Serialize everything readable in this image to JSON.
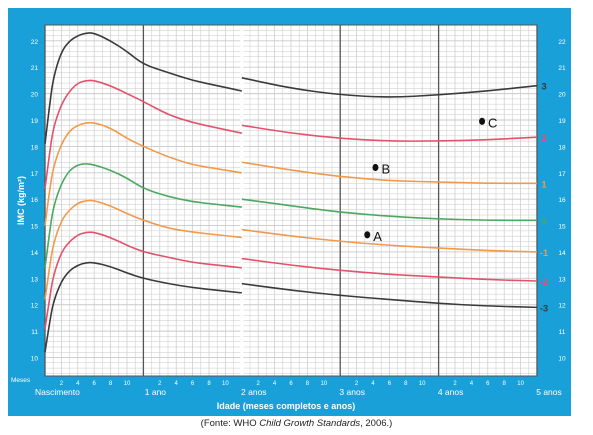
{
  "caption": {
    "prefix": "(Fonte: WHO ",
    "italic": "Child Growth Standards",
    "suffix": ", 2006.)"
  },
  "colors": {
    "background": "#1aa0d8",
    "plot": "#ffffff",
    "grid_minor": "#c9c9c9",
    "grid_major": "#555555",
    "z3": "#3a3a3a",
    "z2": "#e3526c",
    "z1": "#f2994a",
    "z0": "#4aa860"
  },
  "chart_data": {
    "type": "line",
    "ylabel": "IMC (kg/m²)",
    "xlabel": "Idade (meses completos e anos)",
    "x_unit_label": "Meses",
    "xlim": [
      0,
      60
    ],
    "ylim": [
      9.3,
      22.6
    ],
    "y_ticks": [
      10,
      11,
      12,
      13,
      14,
      15,
      16,
      17,
      18,
      19,
      20,
      21,
      22
    ],
    "x_year_labels": [
      {
        "x": 0,
        "label": "Nascimento"
      },
      {
        "x": 12,
        "label": "1 ano"
      },
      {
        "x": 24,
        "label": "2 anos"
      },
      {
        "x": 36,
        "label": "3 anos"
      },
      {
        "x": 48,
        "label": "4 anos"
      },
      {
        "x": 60,
        "label": "5 anos"
      }
    ],
    "x_month_labels": [
      "2",
      "4",
      "6",
      "8",
      "10"
    ],
    "break_at": 24,
    "series": [
      {
        "name": "3",
        "color_key": "z3",
        "x": [
          0,
          0.5,
          1,
          2,
          3,
          4,
          5,
          6,
          8,
          10,
          12,
          15,
          18,
          21,
          24,
          24,
          30,
          36,
          42,
          48,
          54,
          60
        ],
        "y": [
          18.1,
          19.4,
          20.6,
          21.6,
          22.0,
          22.2,
          22.3,
          22.3,
          22.0,
          21.6,
          21.1,
          20.8,
          20.5,
          20.3,
          20.1,
          20.6,
          20.2,
          19.95,
          19.85,
          19.95,
          20.1,
          20.3
        ]
      },
      {
        "name": "2",
        "color_key": "z2",
        "x": [
          0,
          0.5,
          1,
          2,
          3,
          4,
          5,
          6,
          8,
          10,
          12,
          15,
          18,
          21,
          24,
          24,
          30,
          36,
          42,
          48,
          54,
          60
        ],
        "y": [
          16.4,
          17.6,
          18.7,
          19.6,
          20.1,
          20.4,
          20.5,
          20.5,
          20.3,
          20.0,
          19.7,
          19.2,
          18.9,
          18.7,
          18.5,
          18.8,
          18.5,
          18.3,
          18.2,
          18.2,
          18.25,
          18.35
        ]
      },
      {
        "name": "1",
        "color_key": "z1",
        "x": [
          0,
          0.5,
          1,
          2,
          3,
          4,
          5,
          6,
          8,
          10,
          12,
          15,
          18,
          21,
          24,
          24,
          30,
          36,
          42,
          48,
          54,
          60
        ],
        "y": [
          15.0,
          16.2,
          17.2,
          18.1,
          18.6,
          18.8,
          18.9,
          18.9,
          18.7,
          18.3,
          18.0,
          17.6,
          17.3,
          17.15,
          17.0,
          17.4,
          17.1,
          16.85,
          16.7,
          16.65,
          16.6,
          16.6
        ]
      },
      {
        "name": "0",
        "color_key": "z0",
        "x": [
          0,
          0.5,
          1,
          2,
          3,
          4,
          5,
          6,
          8,
          10,
          12,
          15,
          18,
          21,
          24,
          24,
          30,
          36,
          42,
          48,
          54,
          60
        ],
        "y": [
          13.4,
          14.6,
          15.7,
          16.6,
          17.1,
          17.3,
          17.35,
          17.3,
          17.1,
          16.8,
          16.4,
          16.1,
          15.9,
          15.8,
          15.7,
          16.0,
          15.75,
          15.5,
          15.35,
          15.25,
          15.2,
          15.2
        ]
      },
      {
        "name": "-1",
        "color_key": "z1",
        "x": [
          0,
          0.5,
          1,
          2,
          3,
          4,
          5,
          6,
          8,
          10,
          12,
          15,
          18,
          21,
          24,
          24,
          30,
          36,
          42,
          48,
          54,
          60
        ],
        "y": [
          12.2,
          13.3,
          14.3,
          15.2,
          15.6,
          15.85,
          15.95,
          15.95,
          15.75,
          15.45,
          15.2,
          14.9,
          14.75,
          14.65,
          14.55,
          14.85,
          14.6,
          14.4,
          14.25,
          14.15,
          14.05,
          14.0
        ]
      },
      {
        "name": "-2",
        "color_key": "z2",
        "x": [
          0,
          0.5,
          1,
          2,
          3,
          4,
          5,
          6,
          8,
          10,
          12,
          15,
          18,
          21,
          24,
          24,
          30,
          36,
          42,
          48,
          54,
          60
        ],
        "y": [
          11.1,
          12.1,
          13.1,
          14.0,
          14.4,
          14.65,
          14.75,
          14.75,
          14.55,
          14.25,
          14.0,
          13.8,
          13.6,
          13.5,
          13.4,
          13.75,
          13.5,
          13.3,
          13.15,
          13.05,
          12.95,
          12.9
        ]
      },
      {
        "name": "-3",
        "color_key": "z3",
        "x": [
          0,
          0.5,
          1,
          2,
          3,
          4,
          5,
          6,
          8,
          10,
          12,
          15,
          18,
          21,
          24,
          24,
          30,
          36,
          42,
          48,
          54,
          60
        ],
        "y": [
          10.2,
          11.2,
          12.1,
          12.9,
          13.3,
          13.5,
          13.6,
          13.6,
          13.45,
          13.2,
          13.0,
          12.8,
          12.65,
          12.55,
          12.45,
          12.8,
          12.55,
          12.35,
          12.2,
          12.05,
          11.95,
          11.9
        ]
      }
    ],
    "points": [
      {
        "label": "A",
        "x": 39.3,
        "y": 14.65
      },
      {
        "label": "B",
        "x": 40.3,
        "y": 17.2
      },
      {
        "label": "C",
        "x": 53.3,
        "y": 18.95
      }
    ]
  }
}
